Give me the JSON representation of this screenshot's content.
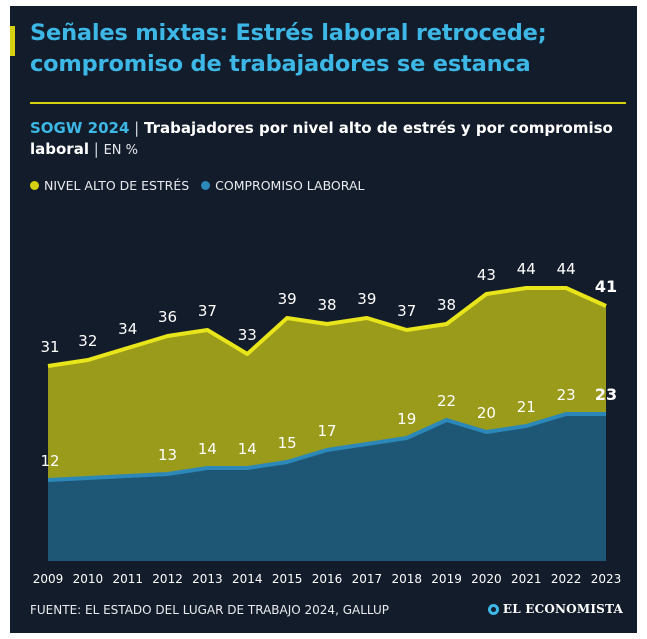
{
  "headline": "Señales mixtas: Estrés laboral retrocede; compromiso de trabajadores se estanca",
  "subtitle": {
    "brand": "SOGW 2024",
    "separator": "|",
    "main": "Trabajadores por nivel alto de estrés y por compromiso laboral",
    "unit_separator": "|",
    "unit": "EN %"
  },
  "legend": {
    "stress": "NIVEL ALTO DE ESTRÉS",
    "engagement": "COMPROMISO LABORAL"
  },
  "colors": {
    "background": "#131c2b",
    "headline": "#3db8e6",
    "stress_area": "#9a9a1b",
    "stress_line": "#e8e51a",
    "engagement_area": "#1e5676",
    "engagement_line": "#2c88b9",
    "legend_stress": "#d6d10f",
    "legend_engagement": "#2c88b9"
  },
  "chart_data": {
    "type": "area",
    "x": [
      "2009",
      "2010",
      "2011",
      "2012",
      "2013",
      "2014",
      "2015",
      "2016",
      "2017",
      "2018",
      "2019",
      "2020",
      "2021",
      "2022",
      "2023"
    ],
    "series": [
      {
        "name": "NIVEL ALTO DE ESTRÉS",
        "values": [
          31,
          32,
          34,
          36,
          37,
          33,
          39,
          38,
          39,
          37,
          38,
          43,
          44,
          44,
          41
        ]
      },
      {
        "name": "COMPROMISO LABORAL",
        "values": [
          12,
          null,
          null,
          13,
          14,
          14,
          15,
          17,
          null,
          19,
          22,
          20,
          21,
          23,
          23
        ]
      }
    ],
    "ylim": [
      0,
      50
    ],
    "grid": false,
    "legend_position": "top-left"
  },
  "source": "FUENTE: EL ESTADO DEL LUGAR DE TRABAJO 2024, GALLUP",
  "logo": {
    "icon": "el-economista-logo-icon",
    "text": "EL ECONOMISTA"
  }
}
